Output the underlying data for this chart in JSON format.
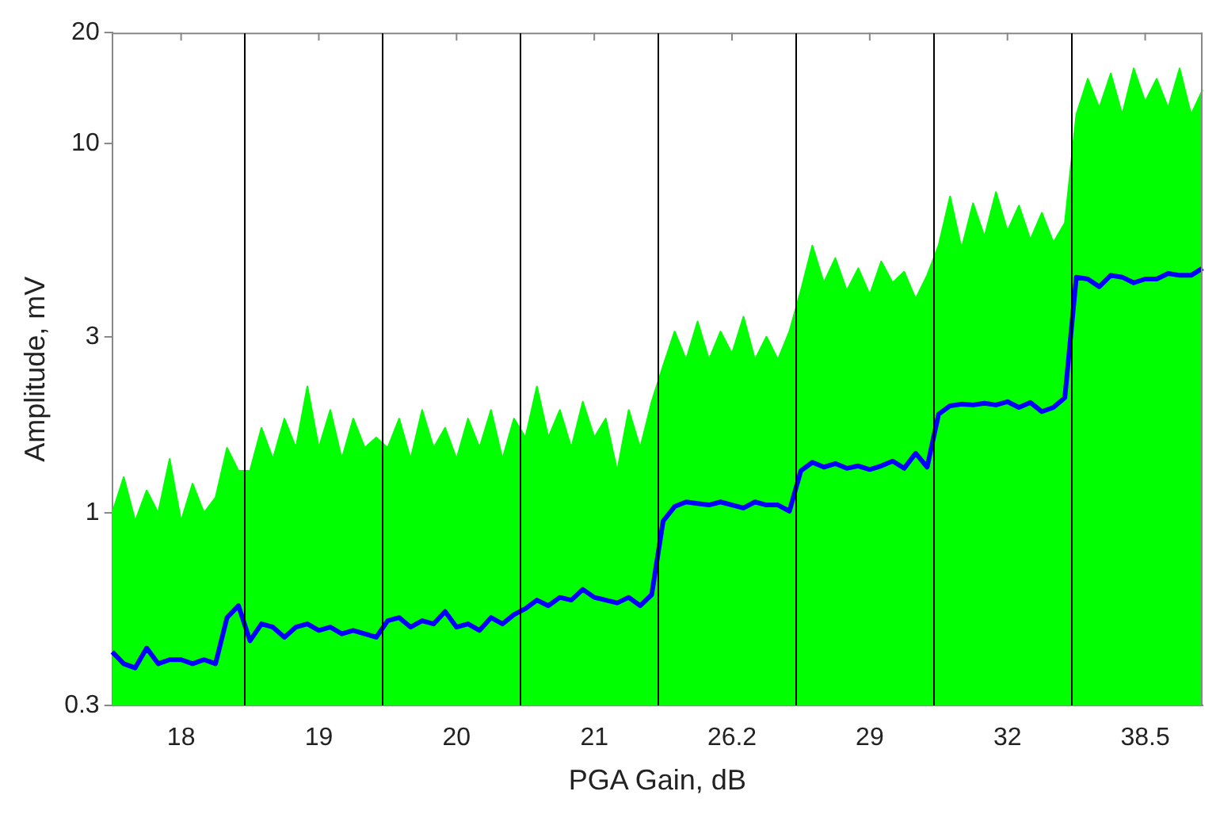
{
  "chart_data": {
    "type": "line",
    "xlabel": "PGA Gain, dB",
    "ylabel": "Amplitude, mV",
    "log": "y",
    "ylim": [
      0.3,
      20
    ],
    "yticks": [
      0.3,
      1,
      3,
      10,
      20
    ],
    "categories": [
      null,
      null,
      null,
      null,
      null,
      null,
      "18",
      null,
      null,
      null,
      null,
      null,
      null,
      null,
      null,
      null,
      null,
      null,
      "19",
      null,
      null,
      null,
      null,
      null,
      null,
      null,
      null,
      null,
      null,
      null,
      "20",
      null,
      null,
      null,
      null,
      null,
      null,
      null,
      null,
      null,
      null,
      null,
      "21",
      null,
      null,
      null,
      null,
      null,
      null,
      null,
      null,
      null,
      null,
      null,
      "26.2",
      null,
      null,
      null,
      null,
      null,
      null,
      null,
      null,
      null,
      null,
      null,
      "29",
      null,
      null,
      null,
      null,
      null,
      null,
      null,
      null,
      null,
      null,
      null,
      "32",
      null,
      null,
      null,
      null,
      null,
      null,
      null,
      null,
      null,
      null,
      null,
      "38.5",
      null,
      null,
      null,
      null,
      null
    ],
    "series": [
      {
        "type": "area",
        "color": "#00ff00",
        "values": [
          1.0,
          1.25,
          0.95,
          1.15,
          1.0,
          1.4,
          0.95,
          1.2,
          1.0,
          1.1,
          1.5,
          1.3,
          1.3,
          1.7,
          1.4,
          1.8,
          1.5,
          2.2,
          1.5,
          1.9,
          1.4,
          1.8,
          1.5,
          1.6,
          1.5,
          1.8,
          1.4,
          1.9,
          1.5,
          1.7,
          1.4,
          1.8,
          1.5,
          1.9,
          1.4,
          1.8,
          1.6,
          2.2,
          1.6,
          1.9,
          1.5,
          2.0,
          1.6,
          1.8,
          1.3,
          1.9,
          1.5,
          2.0,
          2.5,
          3.1,
          2.6,
          3.3,
          2.6,
          3.1,
          2.7,
          3.4,
          2.6,
          3.0,
          2.6,
          3.1,
          4.0,
          5.3,
          4.2,
          4.9,
          4.0,
          4.6,
          3.9,
          4.8,
          4.2,
          4.5,
          3.8,
          4.4,
          5.3,
          7.2,
          5.2,
          6.9,
          5.6,
          7.4,
          5.8,
          6.8,
          5.5,
          6.5,
          5.4,
          6.1,
          12,
          15,
          12.5,
          15.5,
          12,
          16,
          13,
          15,
          12.5,
          16,
          12,
          14
        ]
      },
      {
        "type": "line",
        "color": "#0000ff",
        "values": [
          0.42,
          0.39,
          0.38,
          0.43,
          0.39,
          0.4,
          0.4,
          0.39,
          0.4,
          0.39,
          0.52,
          0.56,
          0.45,
          0.5,
          0.49,
          0.46,
          0.49,
          0.5,
          0.48,
          0.49,
          0.47,
          0.48,
          0.47,
          0.46,
          0.51,
          0.52,
          0.49,
          0.51,
          0.5,
          0.54,
          0.49,
          0.5,
          0.48,
          0.52,
          0.5,
          0.53,
          0.55,
          0.58,
          0.56,
          0.59,
          0.58,
          0.62,
          0.59,
          0.58,
          0.57,
          0.59,
          0.56,
          0.6,
          0.95,
          1.04,
          1.07,
          1.06,
          1.05,
          1.07,
          1.05,
          1.03,
          1.07,
          1.05,
          1.05,
          1.01,
          1.3,
          1.37,
          1.33,
          1.36,
          1.32,
          1.34,
          1.31,
          1.34,
          1.38,
          1.32,
          1.45,
          1.33,
          1.85,
          1.95,
          1.97,
          1.96,
          1.98,
          1.96,
          2.0,
          1.93,
          1.99,
          1.88,
          1.93,
          2.05,
          4.35,
          4.3,
          4.1,
          4.4,
          4.35,
          4.2,
          4.3,
          4.3,
          4.45,
          4.4,
          4.4,
          4.6
        ]
      }
    ]
  }
}
